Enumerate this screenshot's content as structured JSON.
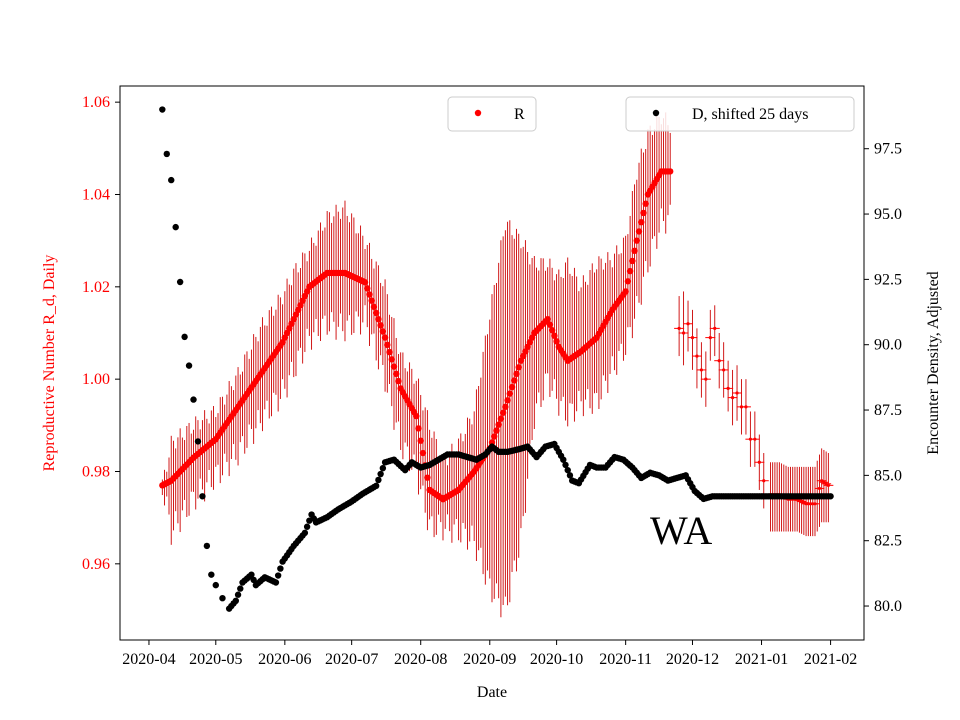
{
  "chart_data": {
    "type": "scatter",
    "title": "",
    "annotation": "WA",
    "xlabel": "Date",
    "ylabel_left": "Reproductive Number R_d, Daily",
    "ylabel_right": "Encounter Density, Adjusted",
    "colors": {
      "r_series": "#ff0000",
      "r_errorbar": "#cc0000",
      "d_series": "#000000",
      "left_axis": "#ff0000",
      "right_axis": "#000000"
    },
    "x_ticks": [
      "2020-04",
      "2020-05",
      "2020-06",
      "2020-07",
      "2020-08",
      "2020-09",
      "2020-10",
      "2020-11",
      "2020-12",
      "2021-01",
      "2021-02"
    ],
    "x_tick_days": [
      0,
      30,
      61,
      91,
      122,
      153,
      183,
      214,
      244,
      275,
      306
    ],
    "xlim_days": [
      -13,
      321
    ],
    "ylim_left": [
      0.9435,
      1.0635
    ],
    "yticks_left": [
      "0.96",
      "0.98",
      "1.00",
      "1.02",
      "1.04",
      "1.06"
    ],
    "ylim_right": [
      78.7,
      99.9
    ],
    "yticks_right": [
      "80.0",
      "82.5",
      "85.0",
      "87.5",
      "90.0",
      "92.5",
      "95.0",
      "97.5"
    ],
    "legend": [
      {
        "label": "R",
        "marker": "red-dot",
        "placement": "top-center"
      },
      {
        "label": "D, shifted 25 days",
        "marker": "black-dot",
        "placement": "top-right"
      }
    ],
    "series": [
      {
        "name": "R",
        "axis": "left",
        "smooth_segment_anchors": [
          [
            6,
            0.977,
            0.977,
            0.977
          ],
          [
            10,
            0.978,
            0.967,
            0.986
          ],
          [
            20,
            0.983,
            0.974,
            0.99
          ],
          [
            30,
            0.987,
            0.979,
            0.993
          ],
          [
            40,
            0.994,
            0.984,
            1.001
          ],
          [
            50,
            1.001,
            0.991,
            1.011
          ],
          [
            60,
            1.008,
            0.997,
            1.018
          ],
          [
            65,
            1.013,
            1.002,
            1.023
          ],
          [
            72,
            1.02,
            1.009,
            1.028
          ],
          [
            80,
            1.023,
            1.012,
            1.035
          ],
          [
            88,
            1.023,
            1.011,
            1.037
          ],
          [
            97,
            1.021,
            1.013,
            1.03
          ],
          [
            106,
            1.009,
            1.0,
            1.02
          ],
          [
            113,
            0.998,
            0.986,
            1.005
          ],
          [
            120,
            0.992,
            0.98,
            1.0
          ],
          [
            126,
            0.976,
            0.968,
            0.99
          ],
          [
            132,
            0.974,
            0.968,
            0.982
          ],
          [
            139,
            0.976,
            0.967,
            0.986
          ],
          [
            146,
            0.98,
            0.965,
            0.993
          ],
          [
            153,
            0.985,
            0.955,
            1.014
          ],
          [
            160,
            0.994,
            0.95,
            1.034
          ],
          [
            167,
            1.004,
            0.965,
            1.03
          ],
          [
            173,
            1.01,
            0.992,
            1.025
          ],
          [
            179,
            1.013,
            1.0,
            1.025
          ],
          [
            184,
            1.007,
            0.995,
            1.022
          ],
          [
            188,
            1.004,
            0.992,
            1.025
          ],
          [
            194,
            1.006,
            0.995,
            1.02
          ],
          [
            201,
            1.009,
            0.995,
            1.025
          ],
          [
            208,
            1.015,
            1.002,
            1.026
          ],
          [
            214,
            1.019,
            1.007,
            1.03
          ],
          [
            219,
            1.03,
            1.015,
            1.045
          ],
          [
            224,
            1.04,
            1.025,
            1.053
          ],
          [
            230,
            1.045,
            1.034,
            1.057
          ],
          [
            234,
            1.045,
            1.035,
            1.055
          ]
        ],
        "sparse_points": [
          [
            238,
            1.011,
            1.005,
            1.018
          ],
          [
            240,
            1.01,
            1.003,
            1.019
          ],
          [
            242,
            1.012,
            1.006,
            1.017
          ],
          [
            244,
            1.009,
            1.002,
            1.015
          ],
          [
            246,
            1.005,
            0.998,
            1.011
          ],
          [
            248,
            1.002,
            0.996,
            1.008
          ],
          [
            250,
            1.0,
            0.994,
            1.006
          ],
          [
            252,
            1.009,
            1.004,
            1.015
          ],
          [
            254,
            1.011,
            1.005,
            1.016
          ],
          [
            256,
            1.004,
            0.998,
            1.01
          ],
          [
            258,
            1.002,
            0.996,
            1.008
          ],
          [
            260,
            0.998,
            0.993,
            1.004
          ],
          [
            262,
            0.996,
            0.99,
            1.002
          ],
          [
            264,
            0.997,
            0.991,
            1.003
          ],
          [
            266,
            0.994,
            0.988,
            1.0
          ],
          [
            268,
            0.994,
            0.988,
            1.0
          ],
          [
            270,
            0.987,
            0.981,
            0.993
          ],
          [
            272,
            0.987,
            0.981,
            0.993
          ],
          [
            274,
            0.982,
            0.976,
            0.988
          ],
          [
            276,
            0.978,
            0.972,
            0.984
          ]
        ],
        "flat_segment_anchors": [
          [
            279,
            0.975,
            0.967,
            0.982
          ],
          [
            283,
            0.975,
            0.967,
            0.982
          ],
          [
            287,
            0.974,
            0.967,
            0.981
          ],
          [
            291,
            0.974,
            0.967,
            0.981
          ],
          [
            295,
            0.973,
            0.966,
            0.981
          ],
          [
            299,
            0.973,
            0.966,
            0.981
          ],
          [
            302,
            0.978,
            0.969,
            0.985
          ],
          [
            305,
            0.977,
            0.969,
            0.984
          ]
        ]
      },
      {
        "name": "D, shifted 25 days",
        "axis": "right",
        "anchors": [
          [
            6,
            99.0
          ],
          [
            8,
            97.3
          ],
          [
            10,
            96.3
          ],
          [
            12,
            94.5
          ],
          [
            14,
            92.4
          ],
          [
            16,
            90.3
          ],
          [
            18,
            89.2
          ],
          [
            20,
            87.9
          ],
          [
            22,
            86.3
          ],
          [
            24,
            84.2
          ],
          [
            26,
            82.3
          ],
          [
            28,
            81.2
          ],
          [
            30,
            80.8
          ],
          [
            33,
            80.3
          ],
          [
            36,
            79.9
          ],
          [
            39,
            80.2
          ],
          [
            42,
            80.9
          ],
          [
            46,
            81.2
          ],
          [
            48,
            80.8
          ],
          [
            52,
            81.1
          ],
          [
            57,
            80.9
          ],
          [
            60,
            81.7
          ],
          [
            65,
            82.3
          ],
          [
            70,
            82.8
          ],
          [
            73,
            83.5
          ],
          [
            75,
            83.2
          ],
          [
            80,
            83.4
          ],
          [
            85,
            83.7
          ],
          [
            91,
            84.0
          ],
          [
            96,
            84.3
          ],
          [
            102,
            84.6
          ],
          [
            106,
            85.5
          ],
          [
            110,
            85.6
          ],
          [
            115,
            85.2
          ],
          [
            118,
            85.5
          ],
          [
            122,
            85.3
          ],
          [
            126,
            85.4
          ],
          [
            130,
            85.6
          ],
          [
            134,
            85.8
          ],
          [
            139,
            85.8
          ],
          [
            143,
            85.7
          ],
          [
            147,
            85.6
          ],
          [
            151,
            85.8
          ],
          [
            154,
            86.1
          ],
          [
            157,
            85.9
          ],
          [
            161,
            85.9
          ],
          [
            166,
            86.0
          ],
          [
            170,
            86.1
          ],
          [
            174,
            85.7
          ],
          [
            178,
            86.1
          ],
          [
            182,
            86.2
          ],
          [
            186,
            85.6
          ],
          [
            190,
            84.8
          ],
          [
            193,
            84.7
          ],
          [
            198,
            85.4
          ],
          [
            201,
            85.3
          ],
          [
            205,
            85.3
          ],
          [
            209,
            85.7
          ],
          [
            213,
            85.6
          ],
          [
            217,
            85.3
          ],
          [
            221,
            84.9
          ],
          [
            225,
            85.1
          ],
          [
            229,
            85.0
          ],
          [
            233,
            84.8
          ],
          [
            237,
            84.9
          ],
          [
            241,
            85.0
          ],
          [
            245,
            84.4
          ],
          [
            249,
            84.1
          ],
          [
            253,
            84.2
          ],
          [
            257,
            84.2
          ],
          [
            261,
            84.2
          ],
          [
            265,
            84.2
          ],
          [
            271,
            84.2
          ],
          [
            280,
            84.2
          ],
          [
            290,
            84.2
          ],
          [
            300,
            84.2
          ],
          [
            306,
            84.2
          ]
        ]
      }
    ]
  }
}
